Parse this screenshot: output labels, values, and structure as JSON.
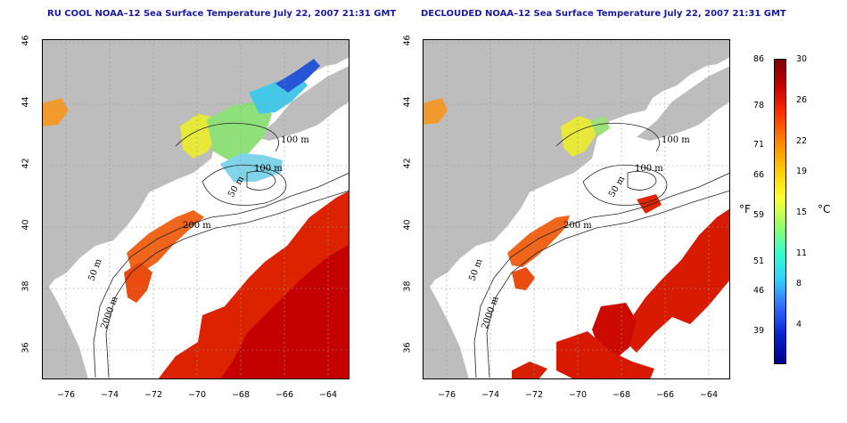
{
  "titles": {
    "left": "RU COOL NOAA–12 Sea Surface Temperature July 22, 2007 21:31 GMT",
    "right": "DECLOUDED NOAA–12 Sea Surface Temperature July 22, 2007 21:31 GMT"
  },
  "axes": {
    "lon_ticks": [
      "−76",
      "−74",
      "−72",
      "−70",
      "−68",
      "−66",
      "−64"
    ],
    "lat_ticks": [
      "36",
      "38",
      "40",
      "42",
      "44",
      "46"
    ],
    "lon_range": [
      -77,
      -63
    ],
    "lat_range": [
      35,
      46
    ]
  },
  "contour_labels": {
    "left": [
      "100 m",
      "100 m",
      "50 m",
      "200 m",
      "50 m",
      "2000 m"
    ],
    "right": [
      "100 m",
      "100 m",
      "50 m",
      "200 m",
      "50 m",
      "2000 m"
    ]
  },
  "colorbar": {
    "celsius_ticks": [
      "30",
      "26",
      "22",
      "19",
      "15",
      "11",
      "8",
      "4"
    ],
    "fahrenheit_ticks": [
      "86",
      "78",
      "71",
      "66",
      "59",
      "51",
      "46",
      "39"
    ],
    "celsius_unit": "°C",
    "fahrenheit_unit": "°F",
    "range_c": [
      0,
      30
    ],
    "colors": [
      "#7a0000",
      "#cc0000",
      "#ff3300",
      "#ff8800",
      "#ffcc00",
      "#ffff33",
      "#99ff66",
      "#33ffcc",
      "#33ccff",
      "#3366ff",
      "#0022cc",
      "#000088"
    ]
  },
  "colors": {
    "land": "#bdbdbd",
    "ocean_nodata": "#ffffff",
    "grid": "#9a9a9a",
    "contour": "#222222"
  }
}
